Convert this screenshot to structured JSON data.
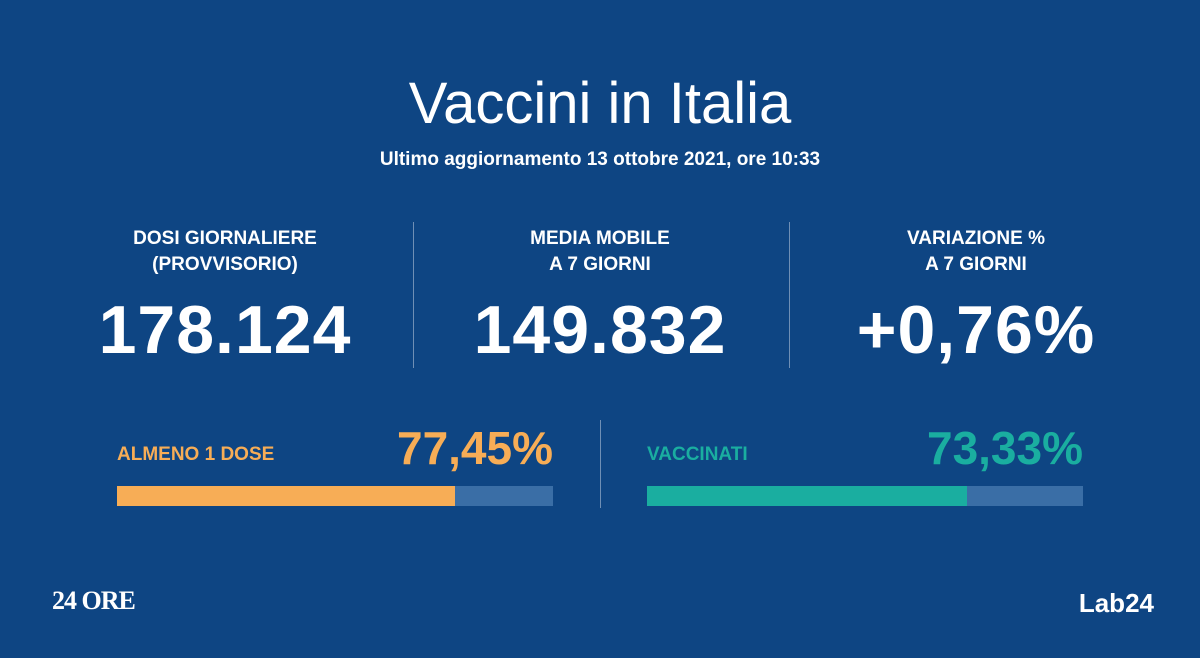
{
  "header": {
    "title": "Vaccini in Italia",
    "subtitle": "Ultimo aggiornamento 13 ottobre 2021, ore 10:33"
  },
  "stats": [
    {
      "label_line1": "DOSI GIORNALIERE",
      "label_line2": "(PROVVISORIO)",
      "value": "178.124"
    },
    {
      "label_line1": "MEDIA MOBILE",
      "label_line2": "A 7 GIORNI",
      "value": "149.832"
    },
    {
      "label_line1": "VARIAZIONE %",
      "label_line2": "A 7 GIORNI",
      "value": "+0,76%"
    }
  ],
  "progress": [
    {
      "label": "ALMENO 1 DOSE",
      "value_text": "77,45%",
      "fraction": 0.7745,
      "color": "#f7ad56"
    },
    {
      "label": "VACCINATI",
      "value_text": "73,33%",
      "fraction": 0.7333,
      "color": "#1aaea0"
    }
  ],
  "colors": {
    "background": "#0e4583",
    "track": "#3a6ea6",
    "divider": "#6f8fb5"
  },
  "footer": {
    "logo_left": "24 ORE",
    "logo_right": "Lab24"
  }
}
